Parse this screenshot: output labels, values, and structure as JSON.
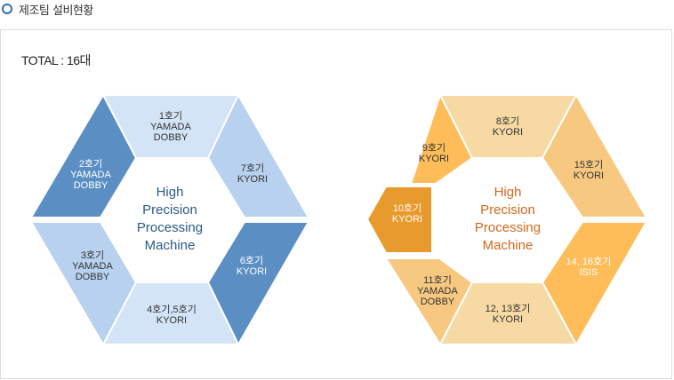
{
  "header": {
    "title": "제조팀 설비현황"
  },
  "total": "TOTAL : 16대",
  "diagrams": [
    {
      "center": [
        "High",
        "Precision",
        "Processing",
        "Machine"
      ],
      "center_color": "#2b5b88",
      "text_color": "#333333",
      "segments": [
        {
          "lines": [
            "1호기",
            "YAMADA",
            "DOBBY"
          ],
          "fill": "#d3e4f7"
        },
        {
          "lines": [
            "7호기",
            "KYORI"
          ],
          "fill": "#b7d1ee"
        },
        {
          "lines": [
            "6호기",
            "KYORI"
          ],
          "fill": "#5b8fc4",
          "text_color": "#ffffff"
        },
        {
          "lines": [
            "4호기,5호기",
            "KYORI"
          ],
          "fill": "#d3e4f7"
        },
        {
          "lines": [
            "3호기",
            "YAMADA",
            "DOBBY"
          ],
          "fill": "#b7d1ee"
        },
        {
          "lines": [
            "2호기",
            "YAMADA",
            "DOBBY"
          ],
          "fill": "#5b8fc4",
          "text_color": "#ffffff"
        }
      ]
    },
    {
      "center": [
        "High",
        "Precision",
        "Processing",
        "Machine"
      ],
      "center_color": "#d2691e",
      "text_color": "#333333",
      "segments": [
        {
          "lines": [
            "8호기",
            "KYORI"
          ],
          "fill": "#f7d9a4"
        },
        {
          "lines": [
            "15호기",
            "KYORI"
          ],
          "fill": "#f7c880"
        },
        {
          "lines": [
            "14, 16호기",
            "ISIS"
          ],
          "fill": "#ffbd5a",
          "text_color": "#ffffff"
        },
        {
          "lines": [
            "12, 13호기",
            "KYORI"
          ],
          "fill": "#f7d9a4"
        },
        {
          "lines": [
            "11호기",
            "YAMADA",
            "DOBBY"
          ],
          "fill": "#f7c880"
        },
        {
          "lines": [
            "9호기",
            "KYORI"
          ],
          "fill": "#ffbd5a",
          "text_color": "#333333"
        },
        {
          "lines": [
            "10호기",
            "KYORI"
          ],
          "fill": "#e89a2c",
          "text_color": "#ffffff"
        }
      ]
    }
  ]
}
